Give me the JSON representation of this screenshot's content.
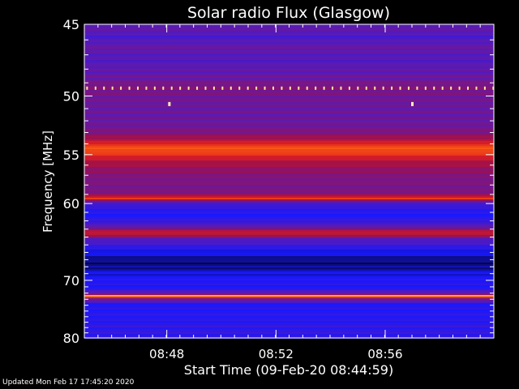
{
  "chart_data": {
    "type": "heatmap",
    "title": "Solar radio Flux (Glasgow)",
    "xlabel": "Start Time (09-Feb-20 08:44:59)",
    "ylabel": "Frequency [MHz]",
    "x_tick_labels": [
      "08:48",
      "08:52",
      "08:56"
    ],
    "x_tick_minutes": [
      3.02,
      7.02,
      11.02
    ],
    "x_range_minutes": [
      0,
      15
    ],
    "y_tick_labels": [
      "45",
      "50",
      "55",
      "60",
      "70",
      "80"
    ],
    "y_tick_values": [
      45,
      50,
      55,
      60,
      70,
      80
    ],
    "y_range": [
      45,
      80
    ],
    "y_scale": "reciprocal",
    "grid": false,
    "colormap": [
      "#000000",
      "#1818ff",
      "#5a1ab4",
      "#a0104a",
      "#e02020",
      "#ff6a10",
      "#ffe070",
      "#ffffff"
    ],
    "frequency_profile": [
      {
        "freq": 45.0,
        "intensity": 0.3
      },
      {
        "freq": 45.8,
        "intensity": 0.26
      },
      {
        "freq": 46.5,
        "intensity": 0.3
      },
      {
        "freq": 47.5,
        "intensity": 0.27
      },
      {
        "freq": 48.5,
        "intensity": 0.31
      },
      {
        "freq": 49.4,
        "intensity": 0.36
      },
      {
        "freq": 50.5,
        "intensity": 0.32
      },
      {
        "freq": 51.8,
        "intensity": 0.31
      },
      {
        "freq": 52.8,
        "intensity": 0.34
      },
      {
        "freq": 53.5,
        "intensity": 0.42
      },
      {
        "freq": 54.1,
        "intensity": 0.62
      },
      {
        "freq": 54.6,
        "intensity": 0.67
      },
      {
        "freq": 55.2,
        "intensity": 0.55
      },
      {
        "freq": 55.8,
        "intensity": 0.45
      },
      {
        "freq": 56.6,
        "intensity": 0.38
      },
      {
        "freq": 57.6,
        "intensity": 0.36
      },
      {
        "freq": 58.6,
        "intensity": 0.33
      },
      {
        "freq": 59.2,
        "intensity": 0.45
      },
      {
        "freq": 59.4,
        "intensity": 0.7
      },
      {
        "freq": 59.7,
        "intensity": 0.3
      },
      {
        "freq": 60.5,
        "intensity": 0.18
      },
      {
        "freq": 61.5,
        "intensity": 0.17
      },
      {
        "freq": 62.7,
        "intensity": 0.27
      },
      {
        "freq": 63.5,
        "intensity": 0.55
      },
      {
        "freq": 64.2,
        "intensity": 0.28
      },
      {
        "freq": 65.5,
        "intensity": 0.17
      },
      {
        "freq": 66.8,
        "intensity": 0.09
      },
      {
        "freq": 67.4,
        "intensity": 0.05
      },
      {
        "freq": 68.5,
        "intensity": 0.11
      },
      {
        "freq": 70.0,
        "intensity": 0.16
      },
      {
        "freq": 71.5,
        "intensity": 0.18
      },
      {
        "freq": 72.2,
        "intensity": 0.4
      },
      {
        "freq": 72.5,
        "intensity": 0.88
      },
      {
        "freq": 72.8,
        "intensity": 0.4
      },
      {
        "freq": 73.8,
        "intensity": 0.17
      },
      {
        "freq": 76.0,
        "intensity": 0.17
      },
      {
        "freq": 78.0,
        "intensity": 0.19
      },
      {
        "freq": 80.0,
        "intensity": 0.19
      }
    ],
    "periodic_spikes": {
      "freq": 49.4,
      "interval_minutes": 0.31,
      "intensity": 0.9
    },
    "isolated_spikes": [
      {
        "minute": 3.1,
        "freq": 50.6
      },
      {
        "minute": 12.0,
        "freq": 50.6
      }
    ]
  },
  "footer": {
    "updated_text": "Updated Mon Feb 17 17:45:20 2020"
  }
}
